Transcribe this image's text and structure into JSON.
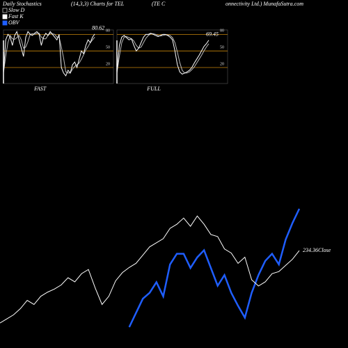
{
  "header": {
    "texts": [
      "Daily Stochastics",
      "(14,3,3) Charts for TEL",
      "(TE C",
      "onnectivity Ltd.) MunafaSutra.com"
    ]
  },
  "chart_data": [
    {
      "type": "line",
      "label": "FAST",
      "ylim": [
        -9,
        88
      ],
      "yticks": [
        20,
        50,
        80
      ],
      "level_color": "#c8860a",
      "series": [
        {
          "name": "Fast K",
          "color": "#ffffff",
          "values": [
            10,
            70,
            80,
            75,
            60,
            78,
            85,
            70,
            55,
            40,
            75,
            85,
            80,
            78,
            82,
            85,
            80,
            60,
            75,
            82,
            78,
            85,
            80,
            75,
            70,
            80,
            20,
            10,
            5,
            15,
            10,
            25,
            30,
            20,
            35,
            50,
            45,
            60,
            70,
            65,
            75,
            80.62
          ]
        },
        {
          "name": "Slow D",
          "color": "#bbbbbb",
          "values": [
            10,
            40,
            65,
            78,
            72,
            71,
            74,
            78,
            70,
            55,
            57,
            67,
            80,
            81,
            80,
            82,
            82,
            75,
            72,
            72,
            78,
            82,
            81,
            80,
            75,
            75,
            57,
            37,
            12,
            10,
            10,
            17,
            22,
            25,
            28,
            35,
            43,
            52,
            58,
            65,
            70,
            75
          ]
        }
      ]
    },
    {
      "type": "line",
      "label": "FULL",
      "ylim": [
        -9,
        88
      ],
      "yticks": [
        20,
        50,
        80
      ],
      "level_color": "#c8860a",
      "series": [
        {
          "name": "Fast K",
          "color": "#ffffff",
          "values": [
            10,
            60,
            75,
            78,
            74,
            70,
            72,
            60,
            50,
            55,
            65,
            75,
            80,
            80,
            82,
            80,
            78,
            76,
            78,
            80,
            80,
            78,
            75,
            70,
            50,
            25,
            12,
            8,
            10,
            12,
            15,
            20,
            28,
            35,
            42,
            50,
            58,
            63,
            69.45
          ]
        },
        {
          "name": "Slow D",
          "color": "#bbbbbb",
          "values": [
            10,
            40,
            65,
            75,
            76,
            74,
            72,
            68,
            60,
            55,
            57,
            65,
            73,
            78,
            81,
            81,
            80,
            78,
            77,
            78,
            79,
            79,
            78,
            74,
            65,
            48,
            29,
            15,
            10,
            10,
            12,
            16,
            21,
            28,
            35,
            42,
            50,
            57,
            63
          ]
        }
      ]
    },
    {
      "type": "line",
      "ylim": [
        160,
        275
      ],
      "y2lim": [
        0,
        100
      ],
      "annotation": "234.36Close",
      "series": [
        {
          "name": "OBV",
          "color": "#1f5eff",
          "axis": "y2",
          "values": [
            null,
            null,
            null,
            null,
            null,
            null,
            null,
            null,
            null,
            null,
            null,
            null,
            null,
            null,
            null,
            null,
            null,
            null,
            null,
            0,
            12,
            24,
            29,
            38,
            26,
            53,
            62,
            62,
            50,
            59,
            65,
            50,
            35,
            44,
            29,
            18,
            8,
            29,
            44,
            56,
            62,
            53,
            74,
            88,
            100
          ]
        },
        {
          "color": "#ffffff",
          "values": [
            164,
            168,
            172,
            178,
            186,
            182,
            190,
            194,
            197,
            201,
            208,
            204,
            212,
            216,
            198,
            182,
            190,
            205,
            213,
            218,
            222,
            230,
            238,
            242,
            246,
            256,
            260,
            266,
            258,
            268,
            260,
            250,
            248,
            236,
            232,
            222,
            228,
            206,
            200,
            204,
            212,
            214,
            220,
            226,
            234.36
          ]
        }
      ]
    }
  ]
}
